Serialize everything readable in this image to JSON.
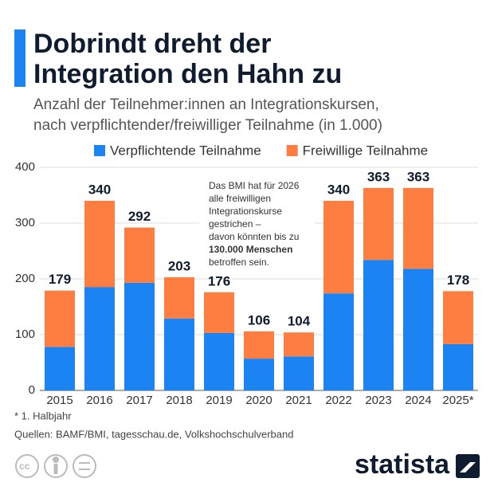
{
  "chart_data": {
    "type": "stacked_bar",
    "title": [
      "Dobrindt dreht der",
      "Integration den Hahn zu"
    ],
    "subtitle": [
      "Anzahl der Teilnehmer:innen an Integrationskursen,",
      "nach verpflichtender/freiwilliger Teilnahme (in 1.000)"
    ],
    "categories": [
      "2015",
      "2016",
      "2017",
      "2018",
      "2019",
      "2020",
      "2021",
      "2022",
      "2023",
      "2024",
      "2025*"
    ],
    "series": [
      {
        "name": "Verpflichtende Teilnahme",
        "color": "#1b83f2",
        "values": [
          78,
          185,
          193,
          129,
          103,
          57,
          61,
          174,
          234,
          218,
          83
        ]
      },
      {
        "name": "Freiwillige Teilnahme",
        "color": "#fd7e40",
        "values": [
          101,
          155,
          99,
          74,
          73,
          49,
          43,
          166,
          129,
          145,
          95
        ]
      }
    ],
    "totals": [
      179,
      340,
      292,
      203,
      176,
      106,
      104,
      340,
      363,
      363,
      178
    ],
    "ylim": [
      0,
      400
    ],
    "yticks": [
      0,
      100,
      200,
      300,
      400
    ],
    "grid": true,
    "annotation": [
      "Das BMI hat für 2026",
      "alle freiwilligen",
      "Integrationskurse",
      "gestrichen –",
      "davon könnten bis zu",
      "130.000 Menschen",
      "betroffen sein."
    ],
    "footnote": "* 1. Halbjahr",
    "source": "Quellen: BAMF/BMI, tagesschau.de, Volkshochschulverband",
    "brand": "statista"
  }
}
